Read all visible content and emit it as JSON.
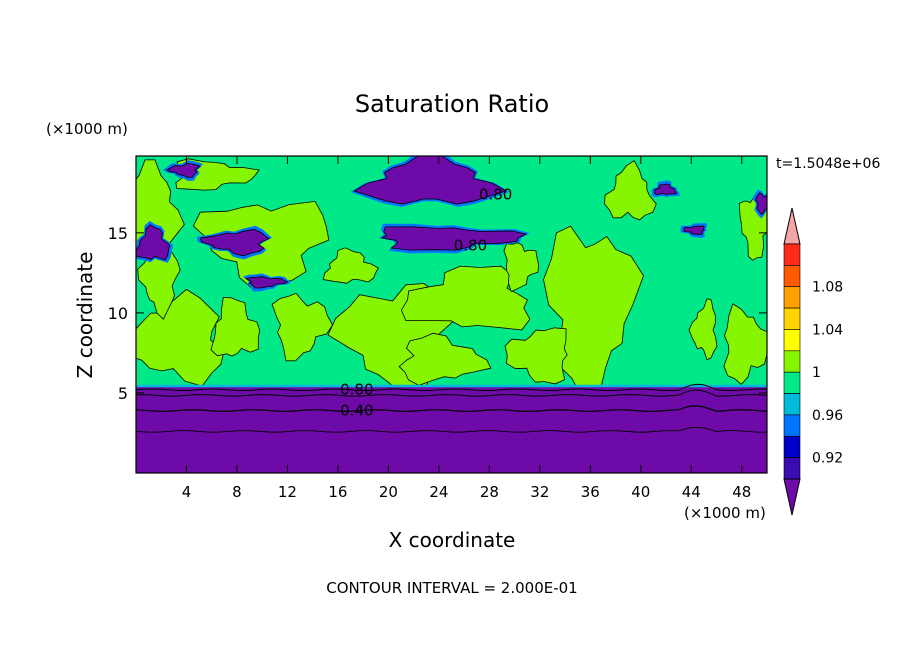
{
  "chart_data": {
    "type": "heatmap",
    "title": "Saturation Ratio",
    "xlabel": "X coordinate",
    "ylabel": "Z coordinate",
    "x_unit": "(×1000 m)",
    "y_unit": "(×1000 m)",
    "time_label": "t=1.5048e+06",
    "footer": "CONTOUR INTERVAL = 2.000E-01",
    "xlim": [
      0,
      50
    ],
    "ylim": [
      0,
      19.8
    ],
    "x_ticks": [
      4,
      8,
      12,
      16,
      20,
      24,
      28,
      32,
      36,
      40,
      44,
      48
    ],
    "y_ticks": [
      5,
      10,
      15
    ],
    "contour_labels": [
      {
        "text": "0.80",
        "x": 28.5,
        "y": 17.4
      },
      {
        "text": "0.80",
        "x": 26.5,
        "y": 14.2
      },
      {
        "text": "0.80",
        "x": 17.5,
        "y": 5.2
      },
      {
        "text": "0.40",
        "x": 17.5,
        "y": 3.9
      }
    ],
    "colorbar": {
      "levels": [
        {
          "label": "",
          "color": "#f4a6a6"
        },
        {
          "label": "",
          "color": "#ff2a1a"
        },
        {
          "label": "1.08",
          "color": "#ff5a00"
        },
        {
          "label": "",
          "color": "#ff9f00"
        },
        {
          "label": "1.04",
          "color": "#ffd400"
        },
        {
          "label": "",
          "color": "#ffff00"
        },
        {
          "label": "1",
          "color": "#87f500"
        },
        {
          "label": "",
          "color": "#00e887"
        },
        {
          "label": "0.96",
          "color": "#00bcd8"
        },
        {
          "label": "",
          "color": "#0075ff"
        },
        {
          "label": "0.92",
          "color": "#0000c8"
        },
        {
          "label": "",
          "color": "#3a0bb0"
        },
        {
          "label": "",
          "color": "#6e0aa8"
        }
      ]
    },
    "regions": {
      "lower_layer": {
        "z_top": 5.5,
        "value": "<0.80",
        "color": "#6e0aa8"
      },
      "upper_background": {
        "value": "0.98-1.0",
        "color": "#00e887"
      },
      "supersaturated_patches": {
        "value": "1.0-1.02",
        "color": "#87f500"
      },
      "dry_patches": {
        "value": "<0.80",
        "color": "#6e0aa8"
      }
    }
  }
}
